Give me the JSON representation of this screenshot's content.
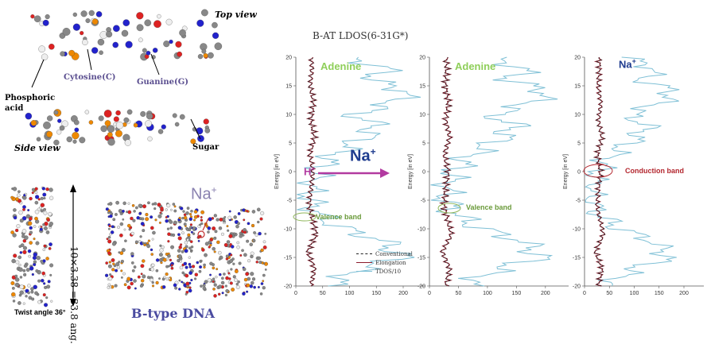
{
  "left_panel": {
    "top_view": "Top view",
    "side_view": "Side view",
    "phosphoric_acid_line1": "Phosphoric",
    "phosphoric_acid_line2": "acid",
    "cytosine": "Cytosine(C)",
    "guanine": "Guanine(G)",
    "sugar": "Sugar",
    "helix_dimension": "10×3.38 =33.8 ang.",
    "twist_angle": "Twist angle 36°",
    "na_label": "Na",
    "na_sup": "+",
    "btype": "B-type DNA"
  },
  "figure_title": "B-AT LDOS(6-31G*)",
  "legend": [
    "Conventional",
    "Elongation",
    "TDOS/10"
  ],
  "colors": {
    "conventional": "#222222",
    "elongation": "#8b1a2b",
    "tdos": "#7fc0d6",
    "adenine_text": "#8fcf5a",
    "na_text": "#1f3c8f",
    "arrow": "#b23aa0",
    "conduction_text": "#b3262e",
    "valence_text": "#6a9a3a"
  },
  "panels": [
    {
      "label": "Adenine",
      "annotation": "Valence band"
    },
    {
      "label": "Adenine",
      "annotation": "Valence band"
    },
    {
      "label": "Na",
      "label_sup": "+",
      "annotation": "Conduction band"
    }
  ],
  "arrow": {
    "from": "H",
    "from_sup": "+",
    "to": "Na",
    "to_sup": "+"
  },
  "chart_data": {
    "type": "line",
    "xlabel": "",
    "ylabel": "Energy [in eV]",
    "ylim": [
      -20,
      20
    ],
    "yticks": [
      -20,
      -15,
      -10,
      -5,
      0,
      5,
      10,
      15,
      20
    ],
    "xticks_first": [
      0,
      50,
      100,
      150,
      200
    ],
    "xticks_rest": [
      0,
      50,
      100,
      150,
      200
    ],
    "xlim": [
      0,
      240
    ],
    "series": [
      {
        "name": "Conventional",
        "values": [
          [
            28,
            -20
          ],
          [
            35,
            -17
          ],
          [
            22,
            -14
          ],
          [
            38,
            -11
          ],
          [
            30,
            -8
          ],
          [
            25,
            -6
          ],
          [
            28,
            -3
          ],
          [
            32,
            0
          ],
          [
            26,
            3
          ],
          [
            35,
            6
          ],
          [
            28,
            9
          ],
          [
            33,
            12
          ],
          [
            27,
            15
          ],
          [
            30,
            18
          ],
          [
            29,
            20
          ]
        ]
      },
      {
        "name": "Elongation",
        "values": [
          [
            28,
            -20
          ],
          [
            35,
            -17
          ],
          [
            22,
            -14
          ],
          [
            38,
            -11
          ],
          [
            30,
            -8
          ],
          [
            25,
            -6
          ],
          [
            28,
            -3
          ],
          [
            32,
            0
          ],
          [
            26,
            3
          ],
          [
            35,
            6
          ],
          [
            28,
            9
          ],
          [
            33,
            12
          ],
          [
            27,
            15
          ],
          [
            30,
            18
          ],
          [
            29,
            20
          ]
        ]
      },
      {
        "name": "TDOS/10",
        "values": [
          [
            60,
            -20
          ],
          [
            120,
            -17
          ],
          [
            200,
            -15
          ],
          [
            160,
            -12
          ],
          [
            90,
            -10
          ],
          [
            50,
            -8
          ],
          [
            30,
            -6
          ],
          [
            25,
            -4
          ],
          [
            30,
            -2
          ],
          [
            40,
            0
          ],
          [
            60,
            2
          ],
          [
            90,
            4
          ],
          [
            130,
            6
          ],
          [
            150,
            8
          ],
          [
            110,
            10
          ],
          [
            180,
            12
          ],
          [
            210,
            14
          ],
          [
            140,
            16
          ],
          [
            170,
            18
          ],
          [
            100,
            20
          ]
        ]
      }
    ]
  }
}
